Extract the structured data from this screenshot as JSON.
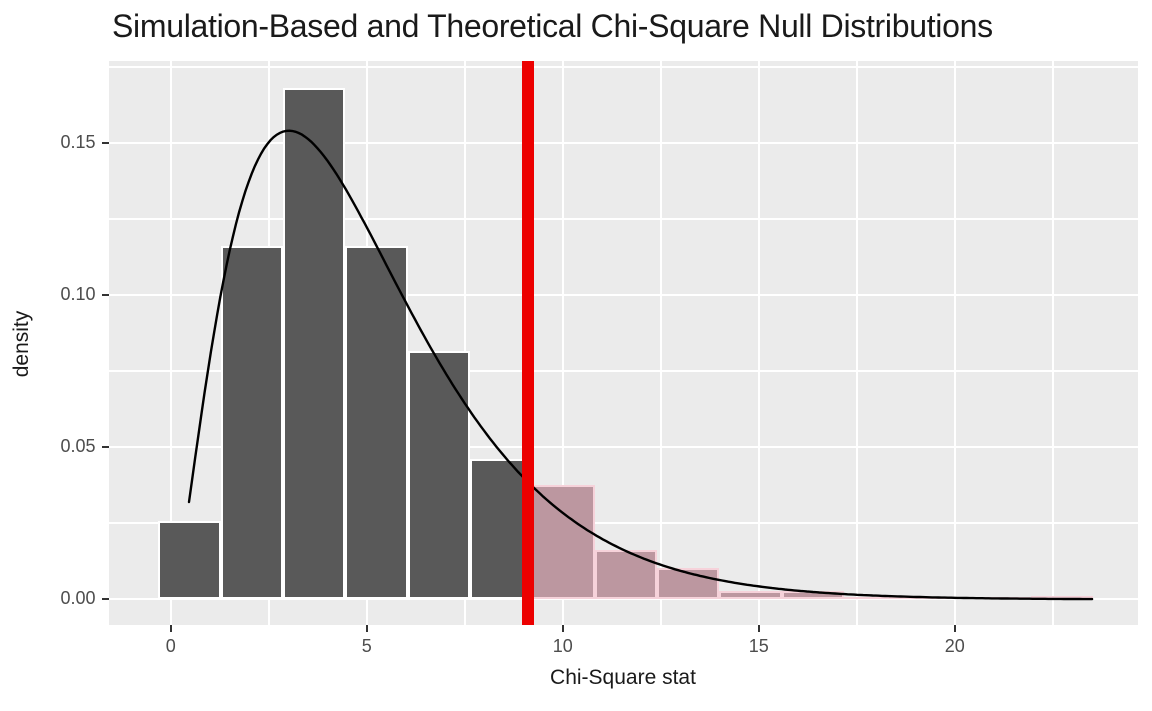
{
  "chart_data": {
    "type": "histogram",
    "title": "Simulation-Based and Theoretical Chi-Square Null Distributions",
    "xlabel": "Chi-Square stat",
    "ylabel": "density",
    "x_ticks": [
      {
        "value": 0,
        "label": "0"
      },
      {
        "value": 5,
        "label": "5"
      },
      {
        "value": 10,
        "label": "10"
      },
      {
        "value": 15,
        "label": "15"
      },
      {
        "value": 20,
        "label": "20"
      }
    ],
    "y_ticks": [
      {
        "value": 0.0,
        "label": "0.00"
      },
      {
        "value": 0.05,
        "label": "0.05"
      },
      {
        "value": 0.1,
        "label": "0.10"
      },
      {
        "value": 0.15,
        "label": "0.15"
      }
    ],
    "x_minor_ticks": [
      2.5,
      7.5,
      12.5,
      17.5,
      22.5
    ],
    "y_minor_ticks": [
      0.025,
      0.075,
      0.125,
      0.175
    ],
    "xlim": [
      -1.59,
      24.66
    ],
    "ylim": [
      -0.0084,
      0.1771
    ],
    "grid": true,
    "legend_position": "none",
    "histogram": {
      "bin_start": -0.32,
      "bin_width": 1.59,
      "densities": [
        0.0255,
        0.116,
        0.168,
        0.116,
        0.0815,
        0.046,
        0.0375,
        0.016,
        0.0103,
        0.0026,
        0.0026,
        0,
        0,
        0,
        0.0011
      ],
      "shaded_from_bin_index": 6
    },
    "observed_stat": 9.1,
    "theoretical_curve": {
      "distribution": "chi-square",
      "df": 5,
      "x_min": 0.45,
      "x_max": 23.52,
      "peak_x": 3,
      "peak_density": 0.154
    },
    "colors": {
      "bar_fill": "#595959",
      "bar_border": "#ffffff",
      "shaded_bar_fill": "#bc97a0",
      "shaded_bar_border": "#f6d2da",
      "observed_line": "#ec0000",
      "curve": "#000000",
      "panel_background": "#ebebeb",
      "gridline": "#ffffff",
      "tick_label": "#4d4d4d",
      "text": "#1a1a1a"
    }
  }
}
